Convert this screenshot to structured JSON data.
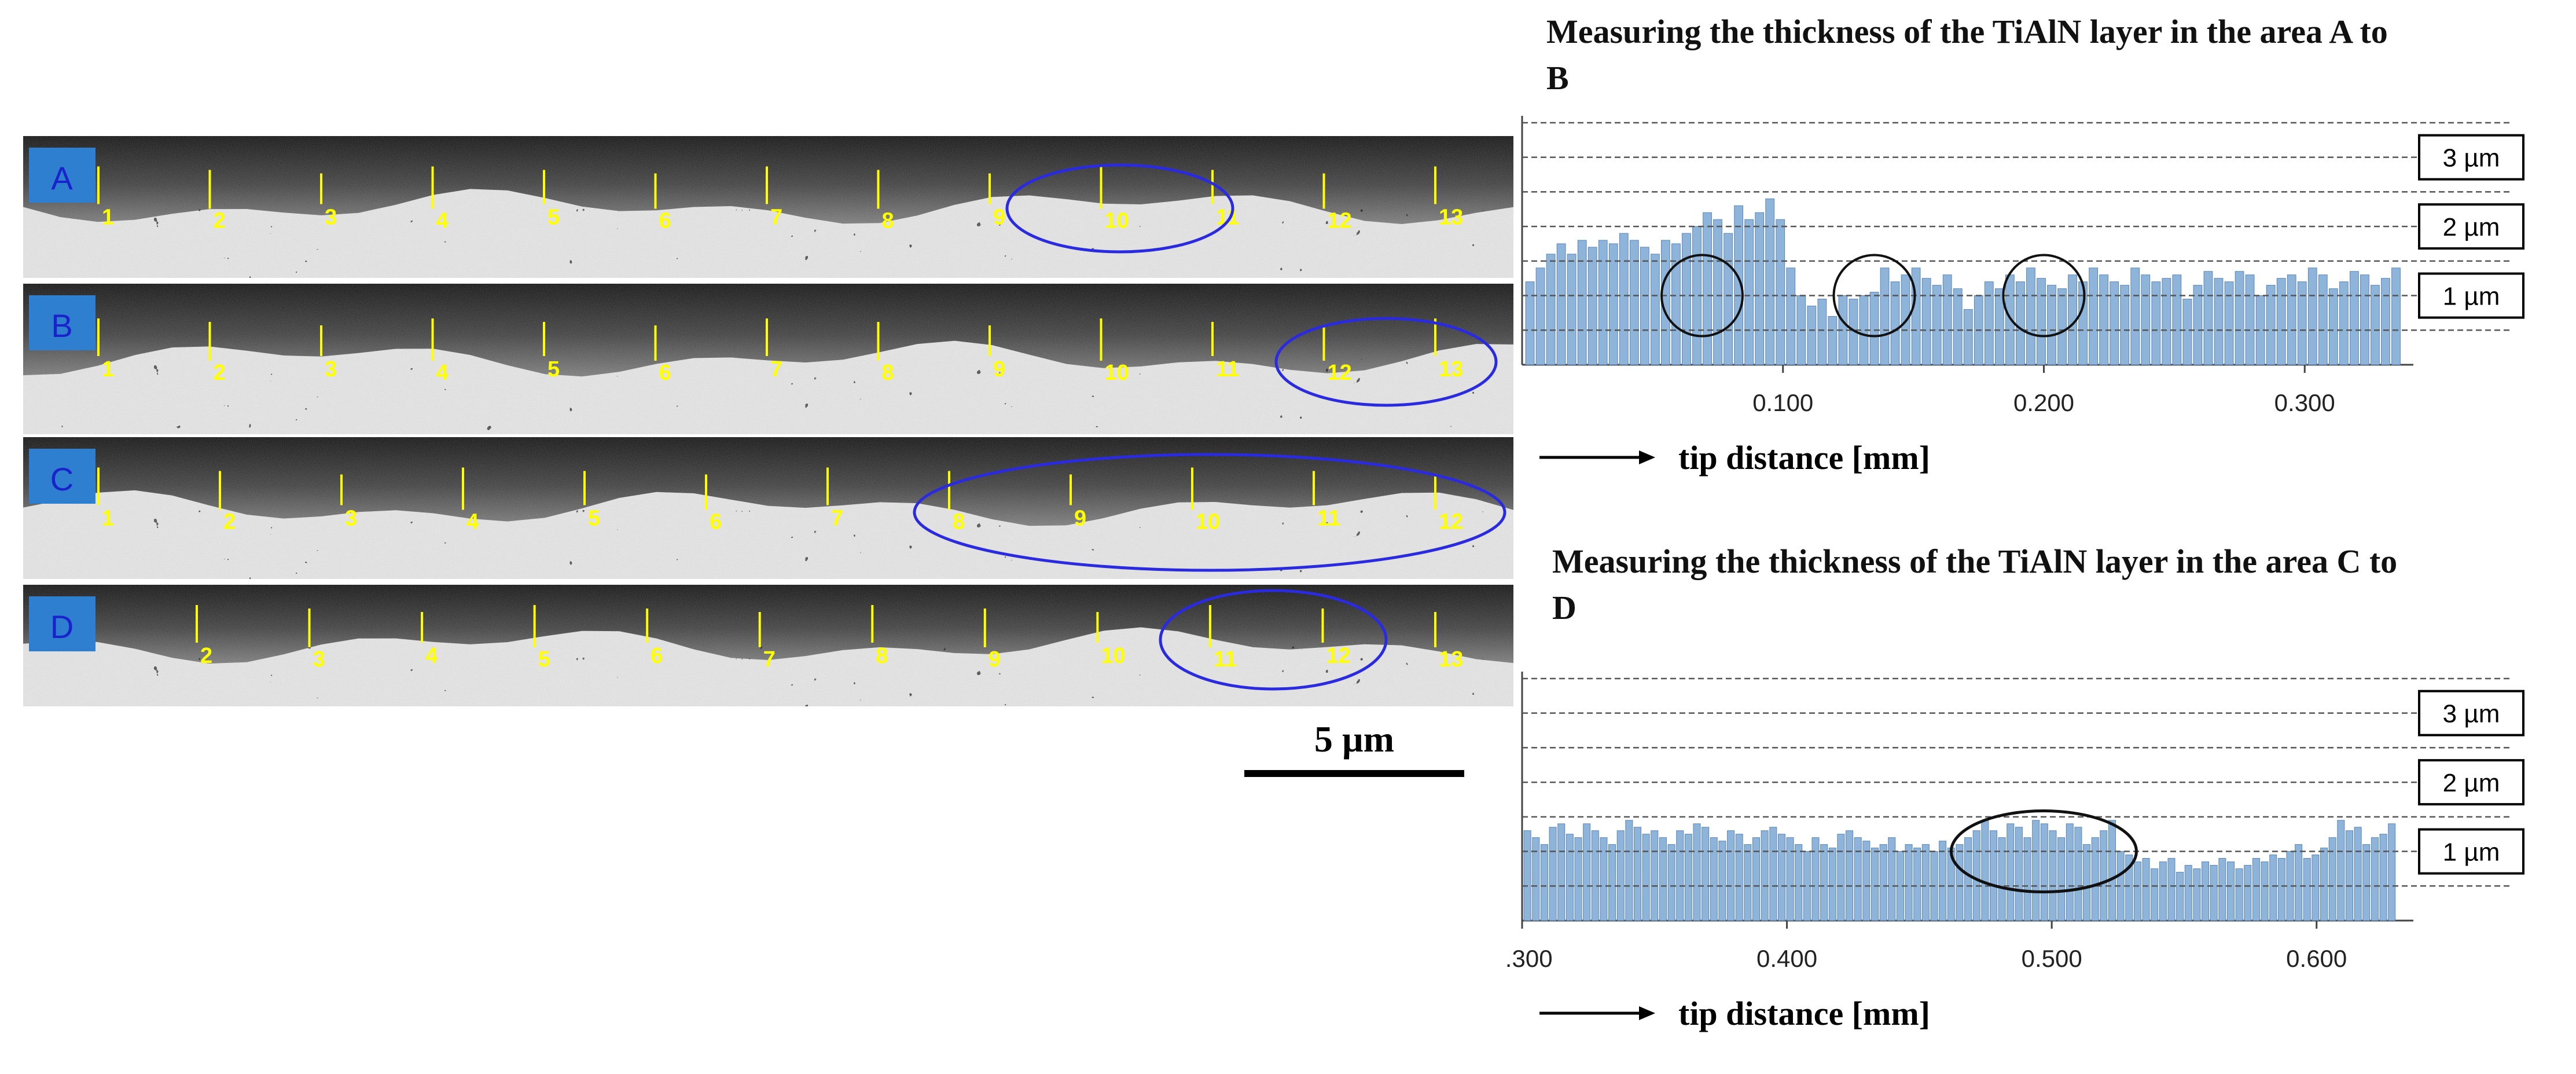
{
  "micrographs": {
    "panels": [
      {
        "letter": "A",
        "numbers": [
          "1",
          "2",
          "3",
          "4",
          "5",
          "6",
          "7",
          "8",
          "9",
          "10",
          "11",
          "12",
          "13"
        ]
      },
      {
        "letter": "B",
        "numbers": [
          "1",
          "2",
          "3",
          "4",
          "5",
          "6",
          "7",
          "8",
          "9",
          "10",
          "11",
          "12",
          "13"
        ]
      },
      {
        "letter": "C",
        "numbers": [
          "1",
          "2",
          "3",
          "4",
          "5",
          "6",
          "7",
          "8",
          "9",
          "10",
          "11",
          "12"
        ]
      },
      {
        "letter": "D",
        "numbers": [
          "2",
          "3",
          "4",
          "5",
          "6",
          "7",
          "8",
          "9",
          "10",
          "11",
          "12",
          "13"
        ]
      }
    ],
    "scale_bar_label": "5 µm",
    "label_color": "#ffff00",
    "panel_label_bg": "#2f7fd1",
    "panel_label_text": "#1a22cc",
    "ellipse_color": "#2a2ae0"
  },
  "chart_data": [
    {
      "type": "bar",
      "title": "Measuring the thickness of the TiAlN layer in the area A to B",
      "xlabel": "tip distance [mm]",
      "xlim": [
        0.0,
        0.335
      ],
      "xticks": [
        0.1,
        0.2,
        0.3
      ],
      "xtick_labels": [
        "0.100",
        "0.200",
        "0.300"
      ],
      "ylim": [
        0,
        3.6
      ],
      "reference_lines": [
        0.5,
        1.0,
        1.5,
        2.0,
        2.5,
        3.0,
        3.5
      ],
      "reference_labels": [
        {
          "value": 3.0,
          "label": "3 µm"
        },
        {
          "value": 2.0,
          "label": "2 µm"
        },
        {
          "value": 1.0,
          "label": "1 µm"
        }
      ],
      "bar_color": "#8fb4d9",
      "x_start": 0.003,
      "x_step": 0.004,
      "values": [
        1.2,
        1.4,
        1.6,
        1.75,
        1.6,
        1.8,
        1.7,
        1.8,
        1.75,
        1.9,
        1.8,
        1.7,
        1.6,
        1.8,
        1.75,
        1.9,
        2.0,
        2.2,
        2.1,
        1.9,
        2.3,
        2.1,
        2.2,
        2.4,
        2.1,
        1.4,
        1.0,
        0.85,
        0.95,
        0.7,
        1.0,
        0.95,
        1.0,
        1.05,
        1.4,
        1.2,
        1.3,
        1.4,
        1.25,
        1.15,
        1.3,
        1.1,
        0.8,
        1.0,
        1.2,
        1.1,
        1.3,
        1.2,
        1.4,
        1.25,
        1.15,
        1.1,
        1.3,
        1.2,
        1.4,
        1.3,
        1.2,
        1.15,
        1.4,
        1.3,
        1.2,
        1.25,
        1.3,
        0.95,
        1.15,
        1.35,
        1.25,
        1.2,
        1.35,
        1.3,
        1.0,
        1.15,
        1.25,
        1.3,
        1.2,
        1.4,
        1.3,
        1.1,
        1.2,
        1.35,
        1.3,
        1.15,
        1.25,
        1.4,
        1.3,
        1.2,
        1.25,
        1.35,
        1.3,
        1.4,
        1.1,
        1.25,
        1.3,
        1.2,
        1.35,
        1.3,
        1.2,
        1.25,
        1.35,
        1.4,
        1.3,
        1.2,
        1.4,
        1.35,
        1.3,
        1.2,
        1.1,
        1.3,
        1.25,
        1.3,
        1.2,
        1.35,
        1.4,
        1.3,
        1.25,
        1.2,
        1.35,
        1.3,
        1.1,
        1.2,
        1.3,
        1.35,
        1.25,
        1.2,
        1.3,
        1.4,
        1.35,
        1.3,
        1.2,
        1.15,
        1.3,
        1.35,
        1.4,
        1.3,
        1.25,
        1.2,
        1.3,
        1.35,
        1.25,
        1.3,
        1.2,
        1.25,
        1.3,
        1.35,
        1.3,
        1.25,
        1.2,
        1.3,
        1.35,
        1.4,
        1.3,
        1.25,
        1.35,
        1.3,
        1.2,
        1.15,
        1.25,
        1.3,
        1.35,
        1.3,
        1.25,
        1.3,
        1.2,
        1.35,
        1.4,
        1.3,
        1.25,
        1.35,
        1.2,
        1.3,
        1.25,
        1.3,
        1.4,
        1.35,
        1.3,
        1.25,
        1.2,
        1.3,
        1.35
      ],
      "markers": [
        {
          "type": "circle",
          "x": 0.069,
          "y": 1.0
        },
        {
          "type": "circle",
          "x": 0.135,
          "y": 1.0
        },
        {
          "type": "circle",
          "x": 0.2,
          "y": 1.0
        }
      ]
    },
    {
      "type": "bar",
      "title": "Measuring the thickness of the TiAlN layer in the area C to D",
      "xlabel": "tip distance [mm]",
      "xlim": [
        0.3,
        0.63
      ],
      "xticks": [
        0.3,
        0.4,
        0.5,
        0.6
      ],
      "xtick_labels": [
        "0.300",
        "0.400",
        "0.500",
        "0.600"
      ],
      "ylim": [
        0,
        3.6
      ],
      "reference_lines": [
        0.5,
        1.0,
        1.5,
        2.0,
        2.5,
        3.0,
        3.5
      ],
      "reference_labels": [
        {
          "value": 3.0,
          "label": "3 µm"
        },
        {
          "value": 2.0,
          "label": "2 µm"
        },
        {
          "value": 1.0,
          "label": "1 µm"
        }
      ],
      "bar_color": "#8fb4d9",
      "x_start": 0.302,
      "x_step": 0.0032,
      "values": [
        1.3,
        1.2,
        1.1,
        1.35,
        1.4,
        1.25,
        1.2,
        1.4,
        1.3,
        1.2,
        1.1,
        1.3,
        1.45,
        1.35,
        1.25,
        1.3,
        1.2,
        1.1,
        1.3,
        1.25,
        1.4,
        1.35,
        1.2,
        1.15,
        1.3,
        1.25,
        1.1,
        1.2,
        1.3,
        1.35,
        1.25,
        1.2,
        1.1,
        1.0,
        1.2,
        1.1,
        1.05,
        1.25,
        1.3,
        1.2,
        1.15,
        1.05,
        1.1,
        1.2,
        1.0,
        1.1,
        1.05,
        1.1,
        1.0,
        1.15,
        1.05,
        1.1,
        1.2,
        1.3,
        1.45,
        1.3,
        1.2,
        1.4,
        1.35,
        1.2,
        1.45,
        1.4,
        1.3,
        1.2,
        1.4,
        1.35,
        1.1,
        1.2,
        1.3,
        1.45,
        1.0,
        0.95,
        0.85,
        0.9,
        0.75,
        0.85,
        0.9,
        0.7,
        0.8,
        0.75,
        0.85,
        0.8,
        0.9,
        0.85,
        0.75,
        0.8,
        0.9,
        0.85,
        0.95,
        0.9,
        1.0,
        1.1,
        0.9,
        0.95,
        1.05,
        1.2,
        1.45,
        1.3,
        1.35,
        1.1,
        1.2,
        1.25,
        1.4,
        1.3,
        1.0,
        1.2,
        1.1,
        1.05,
        1.2,
        1.1,
        1.0,
        1.15,
        1.05,
        1.1,
        1.0,
        1.2,
        1.1,
        1.05,
        1.25,
        1.3,
        1.4,
        1.2,
        1.1,
        1.3,
        1.35,
        1.2,
        1.3,
        1.4,
        1.25,
        1.35,
        1.3,
        1.4,
        1.35,
        1.3
      ],
      "markers": [
        {
          "type": "ellipse",
          "x": 0.497,
          "y": 1.0
        }
      ]
    }
  ]
}
